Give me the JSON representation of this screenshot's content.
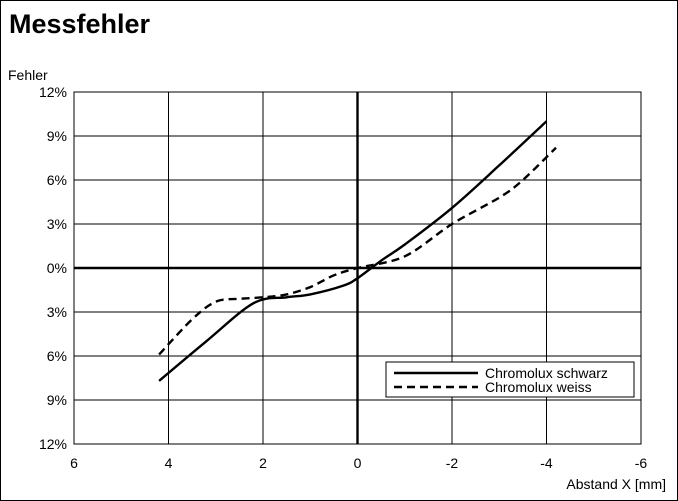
{
  "chart_data": {
    "type": "line",
    "title": "Messfehler",
    "ylabel": "Fehler",
    "xlabel": "Abstand X [mm]",
    "x_ticks": [
      "6",
      "4",
      "2",
      "0",
      "-2",
      "-4",
      "-6"
    ],
    "y_ticks": [
      "12%",
      "9%",
      "6%",
      "3%",
      "0%",
      "3%",
      "6%",
      "9%",
      "12%"
    ],
    "xlim": [
      6,
      -6
    ],
    "ylim": [
      -12,
      12
    ],
    "x_reversed": true,
    "grid": true,
    "legend_position": "bottom-right",
    "series": [
      {
        "name": "Chromolux schwarz",
        "style": "solid",
        "points": [
          [
            4.2,
            -7.7
          ],
          [
            3.2,
            -5.0
          ],
          [
            2.2,
            -2.4
          ],
          [
            1.5,
            -2.0
          ],
          [
            1.0,
            -1.8
          ],
          [
            0.3,
            -1.2
          ],
          [
            0.0,
            -0.7
          ],
          [
            -0.5,
            0.5
          ],
          [
            -1.0,
            1.6
          ],
          [
            -2.0,
            4.1
          ],
          [
            -3.0,
            7.0
          ],
          [
            -4.0,
            10.0
          ]
        ]
      },
      {
        "name": "Chromolux weiss",
        "style": "dashed",
        "points": [
          [
            4.2,
            -5.9
          ],
          [
            3.5,
            -3.5
          ],
          [
            3.0,
            -2.3
          ],
          [
            2.5,
            -2.1
          ],
          [
            2.0,
            -2.0
          ],
          [
            1.5,
            -1.8
          ],
          [
            1.0,
            -1.3
          ],
          [
            0.5,
            -0.5
          ],
          [
            0.0,
            0.0
          ],
          [
            -1.0,
            0.8
          ],
          [
            -2.0,
            3.0
          ],
          [
            -3.0,
            4.8
          ],
          [
            -3.5,
            6.0
          ],
          [
            -4.2,
            8.2
          ]
        ]
      }
    ]
  },
  "colors": {
    "line": "#000000",
    "grid": "#000000",
    "background": "#ffffff"
  }
}
